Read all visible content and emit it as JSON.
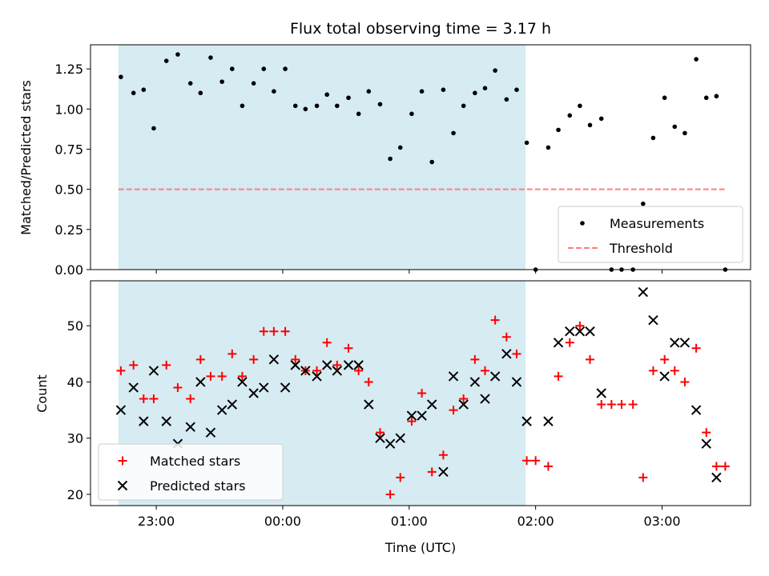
{
  "chart_data": {
    "type": "scatter",
    "title": "Flux total observing time = 3.17 h",
    "xlabel": "Time (UTC)",
    "x_ticks": [
      "23:00",
      "00:00",
      "01:00",
      "02:00",
      "03:00"
    ],
    "xlim_hours": [
      22.48,
      27.7
    ],
    "shaded_span_hours": [
      22.7,
      25.92
    ],
    "shade_color": "#add8e6",
    "panels": [
      {
        "id": "top",
        "ylabel": "Matched/Predicted stars",
        "ylim": [
          0,
          1.4
        ],
        "y_ticks": [
          "0.00",
          "0.25",
          "0.50",
          "0.75",
          "1.00",
          "1.25"
        ],
        "threshold": {
          "name": "Threshold",
          "value": 0.5,
          "x_range_hours": [
            22.7,
            27.5
          ],
          "color": "#ff7f7f"
        },
        "series": [
          {
            "name": "Measurements",
            "color": "#000000",
            "marker": "dot",
            "points": [
              [
                22.72,
                1.2
              ],
              [
                22.82,
                1.1
              ],
              [
                22.9,
                1.12
              ],
              [
                22.98,
                0.88
              ],
              [
                23.08,
                1.3
              ],
              [
                23.17,
                1.34
              ],
              [
                23.27,
                1.16
              ],
              [
                23.35,
                1.1
              ],
              [
                23.43,
                1.32
              ],
              [
                23.52,
                1.17
              ],
              [
                23.6,
                1.25
              ],
              [
                23.68,
                1.02
              ],
              [
                23.77,
                1.16
              ],
              [
                23.85,
                1.25
              ],
              [
                23.93,
                1.11
              ],
              [
                24.02,
                1.25
              ],
              [
                24.1,
                1.02
              ],
              [
                24.18,
                1.0
              ],
              [
                24.27,
                1.02
              ],
              [
                24.35,
                1.09
              ],
              [
                24.43,
                1.02
              ],
              [
                24.52,
                1.07
              ],
              [
                24.6,
                0.97
              ],
              [
                24.68,
                1.11
              ],
              [
                24.77,
                1.03
              ],
              [
                24.85,
                0.69
              ],
              [
                24.93,
                0.76
              ],
              [
                25.02,
                0.97
              ],
              [
                25.1,
                1.11
              ],
              [
                25.18,
                0.67
              ],
              [
                25.27,
                1.12
              ],
              [
                25.35,
                0.85
              ],
              [
                25.43,
                1.02
              ],
              [
                25.52,
                1.1
              ],
              [
                25.6,
                1.13
              ],
              [
                25.68,
                1.24
              ],
              [
                25.77,
                1.06
              ],
              [
                25.85,
                1.12
              ],
              [
                25.93,
                0.79
              ],
              [
                26.0,
                0.0
              ],
              [
                26.1,
                0.76
              ],
              [
                26.18,
                0.87
              ],
              [
                26.27,
                0.96
              ],
              [
                26.35,
                1.02
              ],
              [
                26.43,
                0.9
              ],
              [
                26.52,
                0.94
              ],
              [
                26.6,
                0.0
              ],
              [
                26.68,
                0.0
              ],
              [
                26.77,
                0.0
              ],
              [
                26.85,
                0.41
              ],
              [
                26.93,
                0.82
              ],
              [
                27.02,
                1.07
              ],
              [
                27.1,
                0.89
              ],
              [
                27.18,
                0.85
              ],
              [
                27.27,
                1.31
              ],
              [
                27.35,
                1.07
              ],
              [
                27.43,
                1.08
              ],
              [
                27.5,
                0.0
              ]
            ]
          }
        ],
        "legend": {
          "placement": "lower right",
          "entries": [
            "Measurements",
            "Threshold"
          ]
        }
      },
      {
        "id": "bottom",
        "ylabel": "Count",
        "ylim": [
          18,
          58
        ],
        "y_ticks": [
          "20",
          "30",
          "40",
          "50"
        ],
        "series": [
          {
            "name": "Matched stars",
            "color": "#ff0000",
            "marker": "plus",
            "points": [
              [
                22.72,
                42
              ],
              [
                22.82,
                43
              ],
              [
                22.9,
                37
              ],
              [
                22.98,
                37
              ],
              [
                23.08,
                43
              ],
              [
                23.17,
                39
              ],
              [
                23.27,
                37
              ],
              [
                23.35,
                44
              ],
              [
                23.43,
                41
              ],
              [
                23.52,
                41
              ],
              [
                23.6,
                45
              ],
              [
                23.68,
                41
              ],
              [
                23.77,
                44
              ],
              [
                23.85,
                49
              ],
              [
                23.93,
                49
              ],
              [
                24.02,
                49
              ],
              [
                24.1,
                44
              ],
              [
                24.18,
                42
              ],
              [
                24.27,
                42
              ],
              [
                24.35,
                47
              ],
              [
                24.43,
                43
              ],
              [
                24.52,
                46
              ],
              [
                24.6,
                42
              ],
              [
                24.68,
                40
              ],
              [
                24.77,
                31
              ],
              [
                24.85,
                20
              ],
              [
                24.93,
                23
              ],
              [
                25.02,
                33
              ],
              [
                25.1,
                38
              ],
              [
                25.18,
                24
              ],
              [
                25.27,
                27
              ],
              [
                25.35,
                35
              ],
              [
                25.43,
                37
              ],
              [
                25.52,
                44
              ],
              [
                25.6,
                42
              ],
              [
                25.68,
                51
              ],
              [
                25.77,
                48
              ],
              [
                25.85,
                45
              ],
              [
                25.93,
                26
              ],
              [
                26.0,
                26
              ],
              [
                26.1,
                25
              ],
              [
                26.18,
                41
              ],
              [
                26.27,
                47
              ],
              [
                26.35,
                50
              ],
              [
                26.43,
                44
              ],
              [
                26.52,
                36
              ],
              [
                26.6,
                36
              ],
              [
                26.68,
                36
              ],
              [
                26.77,
                36
              ],
              [
                26.85,
                23
              ],
              [
                26.93,
                42
              ],
              [
                27.02,
                44
              ],
              [
                27.1,
                42
              ],
              [
                27.18,
                40
              ],
              [
                27.27,
                46
              ],
              [
                27.35,
                31
              ],
              [
                27.43,
                25
              ],
              [
                27.5,
                25
              ]
            ]
          },
          {
            "name": "Predicted stars",
            "color": "#000000",
            "marker": "x",
            "points": [
              [
                22.72,
                35
              ],
              [
                22.82,
                39
              ],
              [
                22.9,
                33
              ],
              [
                22.98,
                42
              ],
              [
                23.08,
                33
              ],
              [
                23.17,
                29
              ],
              [
                23.27,
                32
              ],
              [
                23.35,
                40
              ],
              [
                23.43,
                31
              ],
              [
                23.52,
                35
              ],
              [
                23.6,
                36
              ],
              [
                23.68,
                40
              ],
              [
                23.77,
                38
              ],
              [
                23.85,
                39
              ],
              [
                23.93,
                44
              ],
              [
                24.02,
                39
              ],
              [
                24.1,
                43
              ],
              [
                24.18,
                42
              ],
              [
                24.27,
                41
              ],
              [
                24.35,
                43
              ],
              [
                24.43,
                42
              ],
              [
                24.52,
                43
              ],
              [
                24.6,
                43
              ],
              [
                24.68,
                36
              ],
              [
                24.77,
                30
              ],
              [
                24.85,
                29
              ],
              [
                24.93,
                30
              ],
              [
                25.02,
                34
              ],
              [
                25.1,
                34
              ],
              [
                25.18,
                36
              ],
              [
                25.27,
                24
              ],
              [
                25.35,
                41
              ],
              [
                25.43,
                36
              ],
              [
                25.52,
                40
              ],
              [
                25.6,
                37
              ],
              [
                25.68,
                41
              ],
              [
                25.77,
                45
              ],
              [
                25.85,
                40
              ],
              [
                25.93,
                33
              ],
              [
                26.1,
                33
              ],
              [
                26.18,
                47
              ],
              [
                26.27,
                49
              ],
              [
                26.35,
                49
              ],
              [
                26.43,
                49
              ],
              [
                26.52,
                38
              ],
              [
                26.85,
                56
              ],
              [
                26.93,
                51
              ],
              [
                27.02,
                41
              ],
              [
                27.1,
                47
              ],
              [
                27.18,
                47
              ],
              [
                27.27,
                35
              ],
              [
                27.35,
                29
              ],
              [
                27.43,
                23
              ]
            ]
          }
        ],
        "legend": {
          "placement": "lower left",
          "entries": [
            "Matched stars",
            "Predicted stars"
          ]
        }
      }
    ]
  }
}
